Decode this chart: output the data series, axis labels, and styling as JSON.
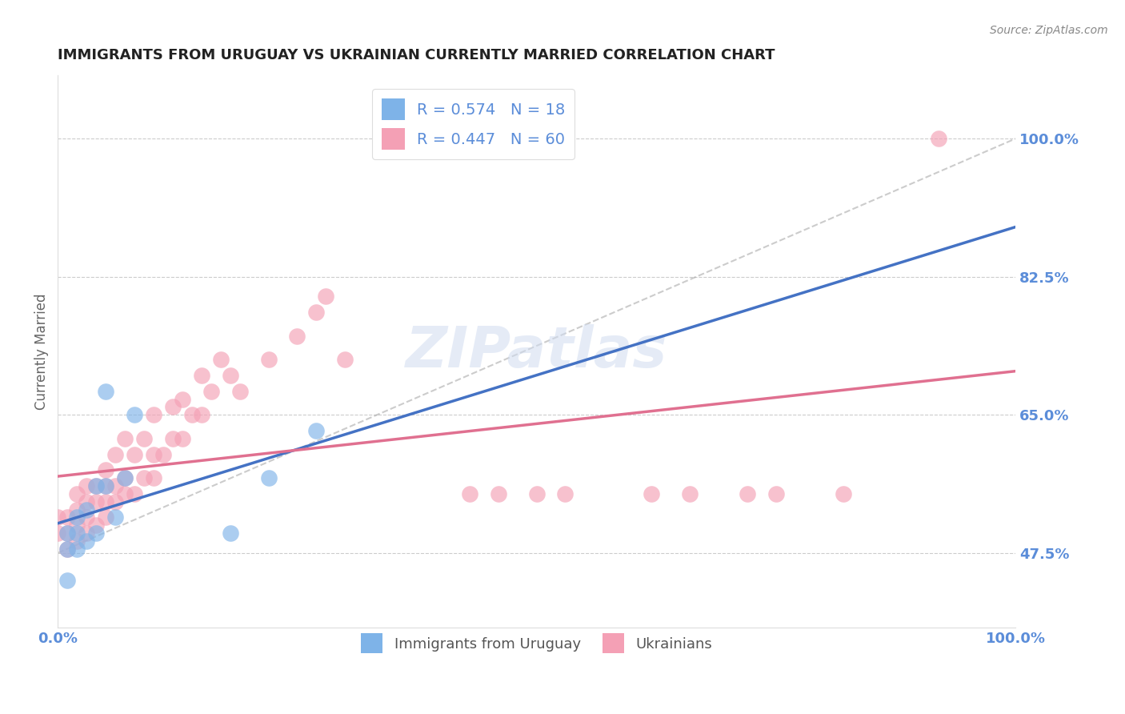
{
  "title": "IMMIGRANTS FROM URUGUAY VS UKRAINIAN CURRENTLY MARRIED CORRELATION CHART",
  "source": "Source: ZipAtlas.com",
  "ylabel": "Currently Married",
  "legend_label_blue": "R = 0.574   N = 18",
  "legend_label_pink": "R = 0.447   N = 60",
  "legend_label_uruguay": "Immigrants from Uruguay",
  "legend_label_ukraine": "Ukrainians",
  "xlim": [
    0,
    1.0
  ],
  "ylim": [
    0.38,
    1.08
  ],
  "yticks": [
    0.475,
    0.65,
    0.825,
    1.0
  ],
  "ytick_labels": [
    "47.5%",
    "65.0%",
    "82.5%",
    "100.0%"
  ],
  "color_blue": "#7EB3E8",
  "color_pink": "#F4A0B5",
  "color_ref_line": "#AAAAAA",
  "title_color": "#222222",
  "axis_label_color": "#5B8DD9",
  "background_color": "#FFFFFF",
  "uruguay_x": [
    0.01,
    0.01,
    0.01,
    0.02,
    0.02,
    0.02,
    0.03,
    0.03,
    0.04,
    0.04,
    0.05,
    0.05,
    0.06,
    0.07,
    0.08,
    0.18,
    0.22,
    0.27
  ],
  "uruguay_y": [
    0.48,
    0.5,
    0.44,
    0.5,
    0.52,
    0.48,
    0.49,
    0.53,
    0.5,
    0.56,
    0.56,
    0.68,
    0.52,
    0.57,
    0.65,
    0.5,
    0.57,
    0.63
  ],
  "ukraine_x": [
    0.0,
    0.0,
    0.01,
    0.01,
    0.01,
    0.02,
    0.02,
    0.02,
    0.02,
    0.03,
    0.03,
    0.03,
    0.03,
    0.04,
    0.04,
    0.04,
    0.05,
    0.05,
    0.05,
    0.05,
    0.06,
    0.06,
    0.06,
    0.07,
    0.07,
    0.07,
    0.08,
    0.08,
    0.09,
    0.09,
    0.1,
    0.1,
    0.1,
    0.11,
    0.12,
    0.12,
    0.13,
    0.13,
    0.14,
    0.15,
    0.15,
    0.16,
    0.17,
    0.18,
    0.19,
    0.22,
    0.25,
    0.27,
    0.28,
    0.3,
    0.43,
    0.46,
    0.5,
    0.53,
    0.62,
    0.66,
    0.72,
    0.75,
    0.82,
    0.92
  ],
  "ukraine_y": [
    0.5,
    0.52,
    0.48,
    0.5,
    0.52,
    0.49,
    0.51,
    0.53,
    0.55,
    0.5,
    0.52,
    0.54,
    0.56,
    0.51,
    0.54,
    0.56,
    0.52,
    0.54,
    0.56,
    0.58,
    0.54,
    0.56,
    0.6,
    0.55,
    0.57,
    0.62,
    0.55,
    0.6,
    0.57,
    0.62,
    0.57,
    0.6,
    0.65,
    0.6,
    0.62,
    0.66,
    0.62,
    0.67,
    0.65,
    0.65,
    0.7,
    0.68,
    0.72,
    0.7,
    0.68,
    0.72,
    0.75,
    0.78,
    0.8,
    0.72,
    0.55,
    0.55,
    0.55,
    0.55,
    0.55,
    0.55,
    0.55,
    0.55,
    0.55,
    1.0
  ]
}
